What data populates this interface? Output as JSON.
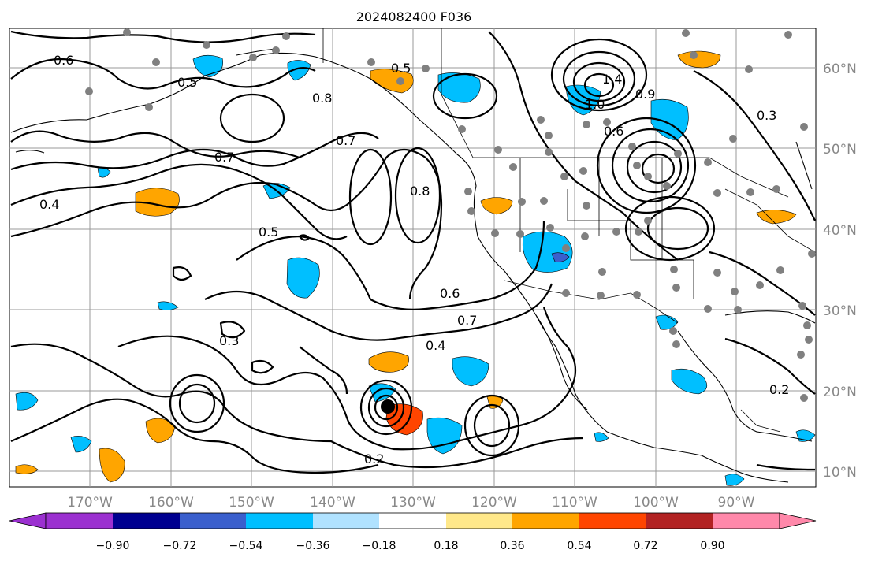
{
  "title": "2024082400 F036",
  "lon_labels": [
    "170°W",
    "160°W",
    "150°W",
    "140°W",
    "130°W",
    "120°W",
    "110°W",
    "100°W",
    "90°W"
  ],
  "lat_labels": [
    "60°N",
    "50°N",
    "40°N",
    "30°N",
    "20°N",
    "10°N"
  ],
  "colorbar": {
    "ticks": [
      "−0.90",
      "−0.72",
      "−0.54",
      "−0.36",
      "−0.18",
      "0.18",
      "0.36",
      "0.54",
      "0.72",
      "0.90"
    ],
    "colors": [
      "#9b30d0",
      "#000090",
      "#3a5fcd",
      "#00bfff",
      "#b0e2ff",
      "#ffffff",
      "#ffe88a",
      "#ffa500",
      "#ff4500",
      "#b22222",
      "#ff88aa"
    ]
  },
  "contour_labels": [
    "0.6",
    "0.5",
    "0.7",
    "0.8",
    "0.4",
    "0.3",
    "0.2",
    "1.4",
    "1.0",
    "0.9",
    "0.6",
    "0.5",
    "0.7",
    "0.8",
    "0.4",
    "0.3",
    "0.2",
    "0.6",
    "0.7",
    "0.5"
  ],
  "colors": {
    "positive_fill": "#ffa500",
    "negative_fill": "#00bfff",
    "station_marker": "#808080",
    "grid": "#999999"
  }
}
